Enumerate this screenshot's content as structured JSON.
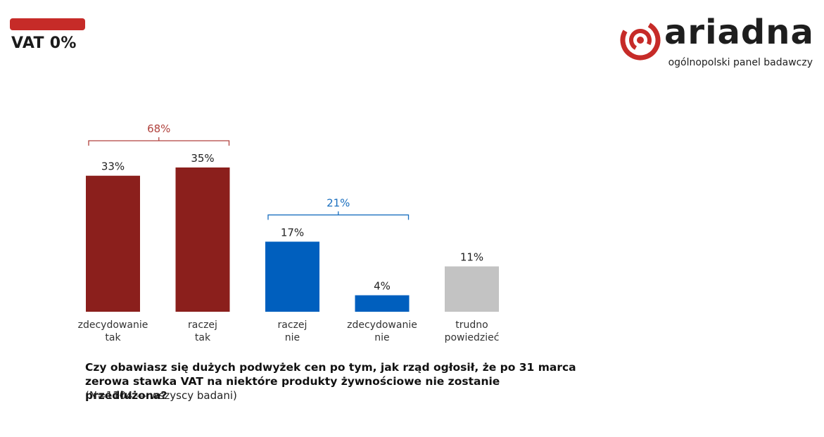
{
  "header": {
    "title": "VAT 0%"
  },
  "logo": {
    "wordmark": "ariadna",
    "tagline": "ogólnopolski panel badawczy"
  },
  "chart_data": {
    "type": "bar",
    "categories": [
      [
        "zdecydowanie",
        "tak"
      ],
      [
        "raczej",
        "tak"
      ],
      [
        "raczej",
        "nie"
      ],
      [
        "zdecydowanie",
        "nie"
      ],
      [
        "trudno",
        "powiedzieć"
      ]
    ],
    "values": [
      33,
      35,
      17,
      4,
      11
    ],
    "value_labels": [
      "33%",
      "35%",
      "17%",
      "4%",
      "11%"
    ],
    "colors": [
      "#8b1f1c",
      "#8b1f1c",
      "#005fbe",
      "#005fbe",
      "#c3c3c3"
    ],
    "groups": [
      {
        "label": "68%",
        "from": 0,
        "to": 1,
        "color": "#b0423d"
      },
      {
        "label": "21%",
        "from": 2,
        "to": 3,
        "color": "#1a6fbf"
      }
    ]
  },
  "footer": {
    "question_line1": "Czy obawiasz się dużych podwyżek cen po tym, jak rząd ogłosił, że po 31 marca",
    "question_line2": "zerowa stawka VAT na niektóre produkty żywnościowe nie zostanie przedłużona?",
    "note": "(N=1104 — wszyscy badani)"
  }
}
